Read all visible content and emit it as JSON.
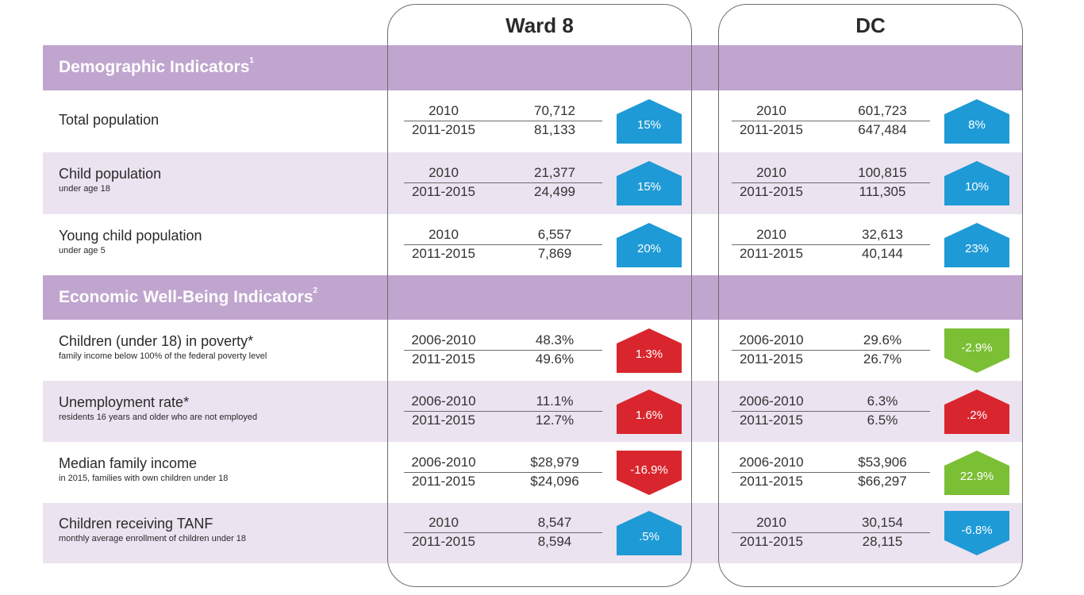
{
  "columns": {
    "ward8": "Ward 8",
    "dc": "DC"
  },
  "colors": {
    "blue": "#1e9ad6",
    "red": "#d9262e",
    "green": "#7bbf35",
    "header": "#c0a5cf",
    "light": "#ebe3f0"
  },
  "sections": {
    "demographic": {
      "title": "Demographic Indicators",
      "note": "1"
    },
    "economic": {
      "title": "Economic Well-Being Indicators",
      "note": "2"
    }
  },
  "rows": [
    {
      "label": "Total population",
      "sublabel": "",
      "ward8": {
        "period1": "2010",
        "period2": "2011-2015",
        "value1": "70,712",
        "value2": "81,133",
        "change": "15%",
        "direction": "up",
        "color": "blue"
      },
      "dc": {
        "period1": "2010",
        "period2": "2011-2015",
        "value1": "601,723",
        "value2": "647,484",
        "change": "8%",
        "direction": "up",
        "color": "blue"
      }
    },
    {
      "label": "Child population",
      "sublabel": "under age 18",
      "ward8": {
        "period1": "2010",
        "period2": "2011-2015",
        "value1": "21,377",
        "value2": "24,499",
        "change": "15%",
        "direction": "up",
        "color": "blue"
      },
      "dc": {
        "period1": "2010",
        "period2": "2011-2015",
        "value1": "100,815",
        "value2": "111,305",
        "change": "10%",
        "direction": "up",
        "color": "blue"
      }
    },
    {
      "label": "Young child population",
      "sublabel": "under age 5",
      "ward8": {
        "period1": "2010",
        "period2": "2011-2015",
        "value1": "6,557",
        "value2": "7,869",
        "change": "20%",
        "direction": "up",
        "color": "blue"
      },
      "dc": {
        "period1": "2010",
        "period2": "2011-2015",
        "value1": "32,613",
        "value2": "40,144",
        "change": "23%",
        "direction": "up",
        "color": "blue"
      }
    },
    {
      "label": "Children (under 18) in poverty*",
      "sublabel": "family income below 100% of the federal poverty level",
      "ward8": {
        "period1": "2006-2010",
        "period2": "2011-2015",
        "value1": "48.3%",
        "value2": "49.6%",
        "change": "1.3%",
        "direction": "up",
        "color": "red"
      },
      "dc": {
        "period1": "2006-2010",
        "period2": "2011-2015",
        "value1": "29.6%",
        "value2": "26.7%",
        "change": "-2.9%",
        "direction": "down",
        "color": "green"
      }
    },
    {
      "label": "Unemployment rate*",
      "sublabel": "residents 16 years and older who are not employed",
      "ward8": {
        "period1": "2006-2010",
        "period2": "2011-2015",
        "value1": "11.1%",
        "value2": "12.7%",
        "change": "1.6%",
        "direction": "up",
        "color": "red"
      },
      "dc": {
        "period1": "2006-2010",
        "period2": "2011-2015",
        "value1": "6.3%",
        "value2": "6.5%",
        "change": ".2%",
        "direction": "up",
        "color": "red"
      }
    },
    {
      "label": "Median family income",
      "sublabel": "in 2015, families with own children under 18",
      "ward8": {
        "period1": "2006-2010",
        "period2": "2011-2015",
        "value1": "$28,979",
        "value2": "$24,096",
        "change": "-16.9%",
        "direction": "down",
        "color": "red"
      },
      "dc": {
        "period1": "2006-2010",
        "period2": "2011-2015",
        "value1": "$53,906",
        "value2": "$66,297",
        "change": "22.9%",
        "direction": "up",
        "color": "green"
      }
    },
    {
      "label": "Children receiving TANF",
      "sublabel": "monthly average enrollment of children under 18",
      "ward8": {
        "period1": "2010",
        "period2": "2011-2015",
        "value1": "8,547",
        "value2": "8,594",
        "change": ".5%",
        "direction": "up",
        "color": "blue"
      },
      "dc": {
        "period1": "2010",
        "period2": "2011-2015",
        "value1": "30,154",
        "value2": "28,115",
        "change": "-6.8%",
        "direction": "down",
        "color": "blue"
      }
    }
  ]
}
